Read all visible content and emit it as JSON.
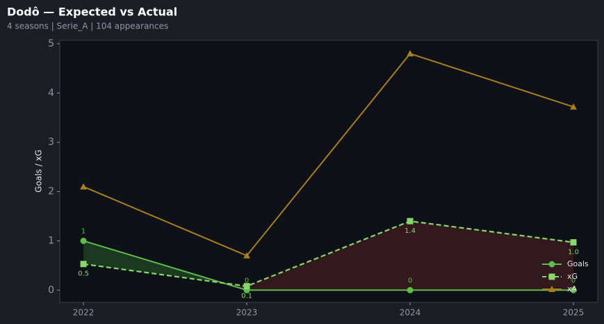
{
  "chart_data": {
    "type": "line",
    "title": "Dodô — Expected vs Actual",
    "subtitle": "4 seasons | Serie_A | 104 appearances",
    "y_label": "Goals / xG",
    "x": [
      2022,
      2023,
      2024,
      2025
    ],
    "xlim": [
      2021.855,
      2025.149
    ],
    "xticks": [
      2022,
      2023,
      2024,
      2025
    ],
    "ylim": [
      -0.25,
      5.07
    ],
    "yticks": [
      0,
      1,
      2,
      3,
      4,
      5
    ],
    "legend": "lower right",
    "series": [
      {
        "name": "Goals",
        "color": "#5bbf4a",
        "marker": "circle",
        "dash": false,
        "values": [
          1,
          0,
          0,
          0
        ],
        "value_labels": [
          "1",
          "0",
          "0",
          "0"
        ]
      },
      {
        "name": "xG",
        "color": "#86d86a",
        "marker": "square",
        "dash": true,
        "values": [
          0.53,
          0.08,
          1.4,
          0.97
        ],
        "value_labels": [
          "0.5",
          "0.1",
          "1.4",
          "1.0"
        ]
      },
      {
        "name": "xA",
        "color": "#a97e1e",
        "marker": "triangle",
        "dash": false,
        "values": [
          2.1,
          0.7,
          4.8,
          3.72
        ]
      }
    ]
  }
}
